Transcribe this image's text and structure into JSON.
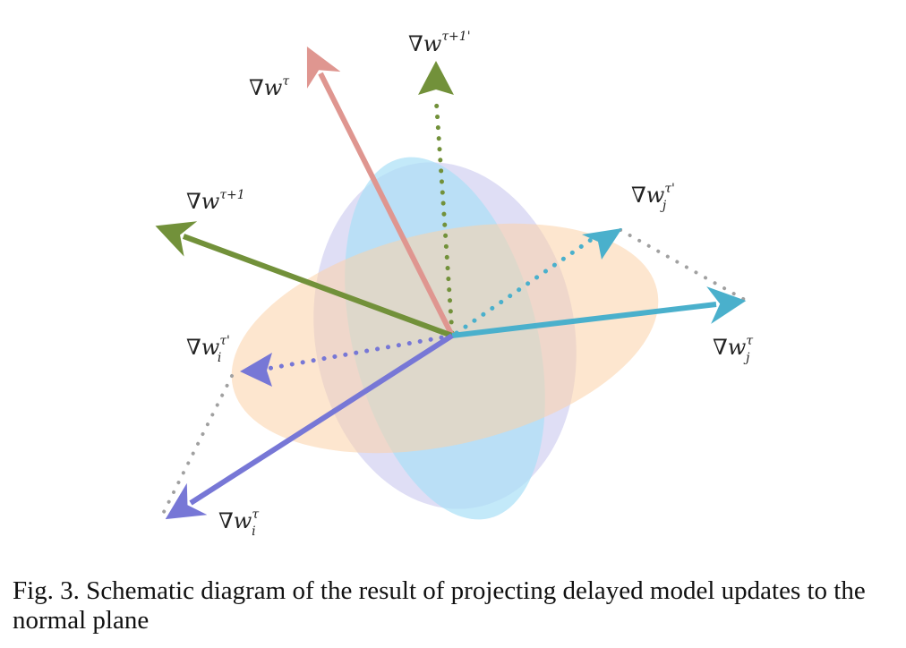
{
  "diagram": {
    "labels": {
      "w_tau": "τ",
      "w_tau_plus_1": "τ+1",
      "w_tau_plus_1_prime": "τ+1'",
      "wj_tau_prime_sup": "τ'",
      "wj_tau_sup": "τ",
      "wi_tau_prime_sup": "τ'",
      "wi_tau_sup": "τ",
      "nabla": "∇",
      "w": "w",
      "sub_i": "i",
      "sub_j": "j"
    },
    "colors": {
      "orange_plane": "#fbd2a7",
      "blue_plane": "#a9dff7",
      "lavender_plane": "#c9c8ee",
      "red_arrow": "#df9690",
      "green_arrow": "#72913a",
      "teal_arrow": "#4ab0cc",
      "purple_arrow": "#7777d6",
      "gray_dots": "#a0a0a0"
    }
  },
  "caption": {
    "text": "Fig. 3.  Schematic diagram of the result of projecting delayed model updates to the normal plane"
  }
}
